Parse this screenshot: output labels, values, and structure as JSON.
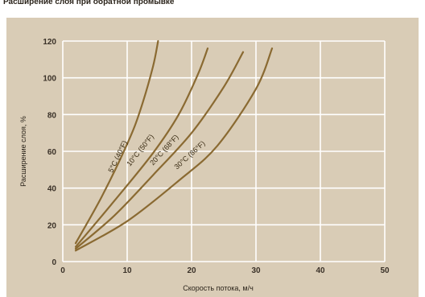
{
  "page": {
    "title": "Расширение слоя при обратной промывке"
  },
  "colors": {
    "background": "#d9ccb6",
    "plot_area": "#d9ccb6",
    "grid": "#ffffff",
    "curve": "#8a6a32",
    "text": "#2b241b"
  },
  "chart_data": {
    "type": "line",
    "title": "",
    "xlabel": "Скорость потока, м/ч",
    "ylabel": "Расширение слоя, %",
    "xlim": [
      0,
      50
    ],
    "ylim": [
      0,
      120
    ],
    "xticks": [
      0,
      10,
      20,
      30,
      40,
      50
    ],
    "yticks": [
      0,
      20,
      40,
      60,
      80,
      100,
      120
    ],
    "grid": true,
    "legend": "none",
    "series": [
      {
        "name": "5°C (40°F)",
        "x": [
          2,
          6,
          10,
          12,
          14,
          14.8
        ],
        "y": [
          10,
          35,
          64,
          82,
          106,
          120
        ]
      },
      {
        "name": "10°C (50°F)",
        "x": [
          2,
          8,
          14,
          18,
          21,
          22.5
        ],
        "y": [
          8,
          33,
          59,
          80,
          102,
          116
        ]
      },
      {
        "name": "20°C (68°F)",
        "x": [
          2,
          8,
          14,
          20,
          25,
          28
        ],
        "y": [
          7,
          25,
          47,
          70,
          95,
          114
        ]
      },
      {
        "name": "30°C (86°F)",
        "x": [
          2,
          10,
          18,
          24,
          30,
          32.5
        ],
        "y": [
          6,
          22,
          44,
          63,
          94,
          116
        ]
      }
    ]
  }
}
